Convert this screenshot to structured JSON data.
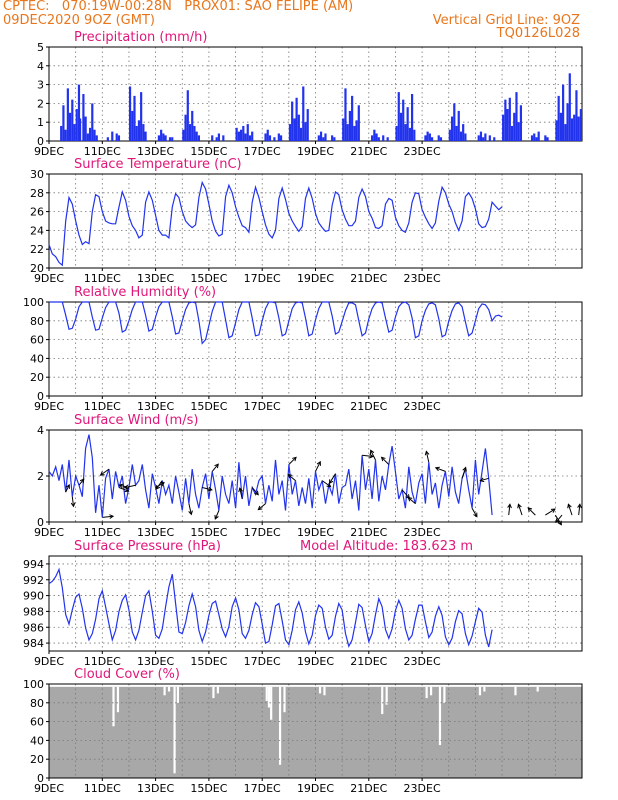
{
  "header": {
    "line1": "CPTEC:   070:19W-00:28N   PROX01: SAO FELIPE (AM)",
    "line2_left": "09DEC2020 9OZ (GMT)",
    "line2_right": "Vertical Grid Line: 9OZ",
    "line3_right": "TQ0126L028"
  },
  "colors": {
    "header": "#e8761c",
    "title": "#e0177a",
    "series": "#2233ee",
    "cloud": "#a8a8a8"
  },
  "x_tick_labels": [
    "9DEC",
    "11DEC",
    "13DEC",
    "15DEC",
    "17DEC",
    "19DEC",
    "21DEC",
    "23DEC"
  ],
  "chart_data": [
    {
      "id": "precip",
      "type": "bar",
      "title": "Precipitation (mm/h)",
      "ylim": [
        0,
        5
      ],
      "yticks": [
        0,
        1,
        2,
        3,
        4,
        5
      ],
      "color": "#2233ee",
      "x_hours": [
        10,
        12,
        14,
        16,
        18,
        20,
        22,
        24,
        26,
        27,
        30,
        32,
        34,
        36,
        38,
        40,
        42,
        52,
        56,
        60,
        62,
        72,
        74,
        76,
        78,
        80,
        82,
        84,
        86,
        98,
        100,
        102,
        104,
        108,
        110,
        120,
        122,
        124,
        126,
        128,
        130,
        132,
        134,
        146,
        150,
        152,
        156,
        168,
        170,
        172,
        174,
        176,
        178,
        180,
        182,
        194,
        196,
        198,
        202,
        206,
        208,
        216,
        218,
        220,
        222,
        224,
        226,
        228,
        230,
        232,
        242,
        244,
        246,
        248,
        254,
        256,
        264,
        266,
        268,
        270,
        272,
        274,
        276,
        278,
        290,
        292,
        294,
        296,
        300,
        304,
        312,
        314,
        316,
        318,
        320,
        322,
        324,
        326,
        328,
        338,
        340,
        342,
        344,
        350,
        352,
        360,
        362,
        364,
        366,
        368,
        370,
        372,
        374,
        386,
        388,
        390,
        392,
        396,
        400,
        408,
        410,
        412,
        414,
        416,
        418,
        420,
        422,
        424,
        434,
        436,
        438,
        440,
        446,
        448,
        456,
        458,
        460,
        462,
        464,
        466,
        468,
        470,
        472,
        474,
        476,
        478
      ],
      "values": [
        0.8,
        1.9,
        0.6,
        2.8,
        1.5,
        2.2,
        0.9,
        1.7,
        3.0,
        1.2,
        2.5,
        1.3,
        0.4,
        0.7,
        2.0,
        0.6,
        0.3,
        0.2,
        0.5,
        0.4,
        0.3,
        2.9,
        1.6,
        2.4,
        0.8,
        1.1,
        2.6,
        0.9,
        0.5,
        0.3,
        0.6,
        0.4,
        0.3,
        0.2,
        0.2,
        0.6,
        1.4,
        2.7,
        0.9,
        1.6,
        0.8,
        0.5,
        0.3,
        0.3,
        0.2,
        0.4,
        0.3,
        0.7,
        0.5,
        0.6,
        0.8,
        0.4,
        0.9,
        0.3,
        0.5,
        0.4,
        0.6,
        0.3,
        0.2,
        0.4,
        0.3,
        0.9,
        2.1,
        1.2,
        2.3,
        1.4,
        0.7,
        2.9,
        1.0,
        1.7,
        0.3,
        0.5,
        0.2,
        0.4,
        0.3,
        0.2,
        1.2,
        2.8,
        0.9,
        1.6,
        2.4,
        0.8,
        1.1,
        1.9,
        0.3,
        0.6,
        0.4,
        0.2,
        0.3,
        0.2,
        0.8,
        2.6,
        1.5,
        2.2,
        0.9,
        1.8,
        0.7,
        2.5,
        0.6,
        0.3,
        0.5,
        0.4,
        0.2,
        0.3,
        0.2,
        0.6,
        1.3,
        2.0,
        0.8,
        1.6,
        0.5,
        0.9,
        0.4,
        0.3,
        0.5,
        0.2,
        0.4,
        0.3,
        0.2,
        1.4,
        2.2,
        1.7,
        2.3,
        0.8,
        1.5,
        2.6,
        1.0,
        1.9,
        0.3,
        0.4,
        0.2,
        0.5,
        0.3,
        0.2,
        1.1,
        2.4,
        1.5,
        3.0,
        0.9,
        2.0,
        3.6,
        1.2,
        1.4,
        2.7,
        1.3,
        1.7
      ]
    },
    {
      "id": "temp",
      "type": "line",
      "title": "Surface Temperature (nC)",
      "ylim": [
        20,
        30
      ],
      "yticks": [
        20,
        22,
        24,
        26,
        28,
        30
      ],
      "color": "#2233ee",
      "x_start_hour": 0,
      "x_step_hours": 3,
      "values": [
        22.5,
        21.5,
        21.2,
        20.6,
        20.3,
        25.0,
        27.5,
        26.8,
        25.0,
        23.5,
        22.5,
        22.8,
        22.6,
        26.0,
        27.8,
        27.6,
        26.0,
        25.0,
        24.8,
        24.7,
        24.7,
        26.5,
        28.1,
        27.2,
        25.5,
        24.5,
        24.0,
        23.2,
        23.5,
        27.0,
        28.1,
        27.2,
        25.6,
        24.0,
        23.5,
        23.5,
        23.2,
        26.5,
        27.9,
        27.5,
        26.0,
        25.0,
        24.6,
        24.3,
        24.6,
        27.5,
        29.1,
        28.4,
        26.8,
        25.0,
        23.9,
        23.4,
        23.6,
        27.6,
        28.8,
        28.0,
        26.5,
        25.4,
        24.5,
        24.3,
        23.8,
        27.0,
        28.6,
        27.5,
        26.0,
        24.6,
        23.6,
        23.2,
        24.0,
        27.4,
        28.5,
        27.3,
        25.8,
        25.0,
        24.4,
        23.9,
        24.4,
        27.4,
        28.5,
        27.4,
        25.8,
        24.8,
        24.3,
        23.9,
        24.0,
        26.7,
        28.1,
        27.8,
        26.2,
        25.2,
        24.5,
        24.5,
        25.0,
        27.5,
        28.4,
        27.6,
        26.0,
        25.3,
        24.3,
        24.2,
        24.5,
        26.8,
        27.4,
        27.2,
        25.4,
        24.5,
        24.0,
        23.8,
        24.8,
        27.0,
        28.0,
        27.9,
        26.2,
        25.4,
        24.7,
        24.2,
        24.8,
        27.1,
        28.6,
        28.0,
        26.8,
        26.0,
        24.8,
        24.0,
        25.0,
        27.6,
        28.0,
        27.4,
        26.3,
        24.7,
        24.3,
        24.4,
        25.2,
        27.0,
        26.6,
        26.2,
        26.5
      ]
    },
    {
      "id": "rh",
      "type": "line",
      "title": "Relative Humidity (%)",
      "ylim": [
        0,
        100
      ],
      "yticks": [
        0,
        20,
        40,
        60,
        80,
        100
      ],
      "color": "#2233ee",
      "x_start_hour": 0,
      "x_step_hours": 3,
      "values": [
        100,
        100,
        100,
        100,
        100,
        86,
        71,
        72,
        82,
        95,
        100,
        100,
        100,
        84,
        70,
        71,
        83,
        94,
        100,
        100,
        100,
        88,
        68,
        70,
        80,
        92,
        100,
        100,
        100,
        86,
        69,
        71,
        84,
        95,
        100,
        100,
        100,
        84,
        66,
        67,
        80,
        92,
        99,
        100,
        99,
        80,
        56,
        60,
        75,
        90,
        100,
        100,
        100,
        81,
        62,
        64,
        78,
        92,
        100,
        100,
        100,
        83,
        64,
        65,
        80,
        93,
        100,
        100,
        99,
        83,
        64,
        66,
        80,
        93,
        99,
        100,
        99,
        83,
        64,
        66,
        81,
        93,
        100,
        100,
        100,
        85,
        66,
        68,
        79,
        91,
        99,
        99,
        97,
        80,
        64,
        67,
        82,
        93,
        99,
        100,
        99,
        83,
        68,
        70,
        84,
        95,
        99,
        100,
        97,
        83,
        62,
        64,
        80,
        91,
        98,
        99,
        97,
        82,
        63,
        65,
        80,
        91,
        98,
        99,
        95,
        79,
        64,
        67,
        80,
        93,
        98,
        97,
        92,
        80,
        85,
        86,
        84
      ]
    },
    {
      "id": "wind",
      "type": "line",
      "title": "Surface Wind (m/s)",
      "ylim": [
        0,
        4
      ],
      "yticks": [
        0,
        2,
        4
      ],
      "color": "#2233ee",
      "x_start_hour": 0,
      "x_step_hours": 3,
      "values": [
        2.2,
        2.0,
        2.4,
        1.8,
        2.5,
        1.3,
        2.7,
        1.1,
        2.0,
        1.6,
        1.1,
        3.2,
        3.8,
        2.8,
        0.4,
        1.6,
        0.2,
        1.9,
        2.3,
        1.0,
        2.2,
        1.5,
        2.0,
        0.8,
        1.5,
        2.5,
        1.6,
        1.8,
        2.5,
        1.4,
        0.6,
        2.1,
        1.5,
        0.8,
        1.8,
        1.2,
        1.6,
        0.8,
        2.0,
        1.3,
        0.5,
        1.9,
        0.8,
        2.3,
        1.2,
        0.6,
        1.5,
        2.1,
        1.0,
        2.2,
        1.4,
        0.5,
        2.0,
        1.2,
        0.8,
        1.8,
        0.6,
        2.6,
        1.0,
        2.0,
        0.7,
        1.5,
        1.2,
        1.8,
        2.0,
        0.8,
        1.6,
        0.9,
        2.7,
        1.2,
        1.8,
        0.5,
        2.5,
        1.2,
        1.8,
        0.7,
        1.5,
        0.8,
        1.9,
        0.6,
        2.2,
        1.4,
        1.8,
        0.8,
        1.6,
        1.2,
        2.1,
        0.8,
        1.5,
        1.6,
        2.3,
        1.0,
        1.8,
        0.5,
        2.9,
        1.4,
        2.3,
        1.0,
        2.7,
        0.9,
        2.0,
        1.4,
        2.5,
        3.3,
        2.2,
        1.0,
        1.4,
        0.6,
        2.4,
        1.3,
        0.8,
        1.7,
        2.1,
        0.8,
        2.6,
        1.2,
        1.7,
        0.6,
        1.6,
        2.2,
        1.1,
        2.4,
        1.3,
        0.8,
        1.9,
        2.3,
        1.4,
        0.6,
        2.7,
        1.2,
        2.2,
        3.2,
        1.9,
        0.3
      ],
      "arrows": [
        {
          "hour": 15,
          "u": 0.3,
          "v": 0.6
        },
        {
          "hour": 21,
          "u": 0.1,
          "v": -0.8
        },
        {
          "hour": 27,
          "u": 0.4,
          "v": 0.5
        },
        {
          "hour": 48,
          "u": 0.9,
          "v": 0.1
        },
        {
          "hour": 54,
          "u": -0.7,
          "v": -0.5
        },
        {
          "hour": 63,
          "u": 0.8,
          "v": -0.3
        },
        {
          "hour": 72,
          "u": -0.8,
          "v": 0.2
        },
        {
          "hour": 78,
          "u": -0.9,
          "v": -0.2
        },
        {
          "hour": 96,
          "u": 0.7,
          "v": 0.4
        },
        {
          "hour": 102,
          "u": -0.5,
          "v": -0.7
        },
        {
          "hour": 126,
          "u": 0.2,
          "v": -0.9
        },
        {
          "hour": 138,
          "u": 0.8,
          "v": -0.2
        },
        {
          "hour": 147,
          "u": 0.5,
          "v": 0.6
        },
        {
          "hour": 153,
          "u": -0.3,
          "v": -0.7
        },
        {
          "hour": 174,
          "u": -0.2,
          "v": 0.9
        },
        {
          "hour": 183,
          "u": 0.5,
          "v": -0.6
        },
        {
          "hour": 195,
          "u": -0.6,
          "v": -0.5
        },
        {
          "hour": 216,
          "u": 0.6,
          "v": 0.6
        },
        {
          "hour": 222,
          "u": -0.6,
          "v": 0.5
        },
        {
          "hour": 240,
          "u": 0.4,
          "v": 0.8
        },
        {
          "hour": 246,
          "u": 0.7,
          "v": -0.5
        },
        {
          "hour": 258,
          "u": -0.5,
          "v": -0.8
        },
        {
          "hour": 282,
          "u": 0.9,
          "v": -0.1
        },
        {
          "hour": 294,
          "u": -0.4,
          "v": 0.8
        },
        {
          "hour": 306,
          "u": -0.6,
          "v": 0.6
        },
        {
          "hour": 318,
          "u": 0.6,
          "v": -0.7
        },
        {
          "hour": 330,
          "u": -0.6,
          "v": 0.5
        },
        {
          "hour": 342,
          "u": -0.2,
          "v": 0.9
        },
        {
          "hour": 357,
          "u": -0.8,
          "v": 0.3
        },
        {
          "hour": 372,
          "u": 0.3,
          "v": 0.9
        },
        {
          "hour": 381,
          "u": 0.4,
          "v": -0.7
        },
        {
          "hour": 396,
          "u": -0.7,
          "v": -0.2
        },
        {
          "hour": 414,
          "u": 0.1,
          "v": 0.9
        },
        {
          "hour": 426,
          "u": -0.3,
          "v": 0.9
        },
        {
          "hour": 438,
          "u": -0.6,
          "v": 0.6
        },
        {
          "hour": 447,
          "u": 0.8,
          "v": 0.5
        },
        {
          "hour": 456,
          "u": 0.5,
          "v": -0.8
        },
        {
          "hour": 462,
          "u": -0.5,
          "v": -0.6
        },
        {
          "hour": 471,
          "u": -0.3,
          "v": 0.9
        },
        {
          "hour": 477,
          "u": 0.1,
          "v": 0.9
        }
      ]
    },
    {
      "id": "pres",
      "type": "line",
      "title": "Surface Pressure (hPa)",
      "subtitle": "Model Altitude: 183.623  m",
      "ylim": [
        983,
        995
      ],
      "yticks": [
        984,
        986,
        988,
        990,
        992,
        994
      ],
      "color": "#2233ee",
      "x_start_hour": 0,
      "x_step_hours": 3,
      "values": [
        991.5,
        991.8,
        992.4,
        993.3,
        991.0,
        987.6,
        986.4,
        988.2,
        989.8,
        990.2,
        988.4,
        985.9,
        984.4,
        985.2,
        987.0,
        989.6,
        990.6,
        988.6,
        986.4,
        984.4,
        985.6,
        988.0,
        989.4,
        990.1,
        988.2,
        985.4,
        984.4,
        985.6,
        987.9,
        990.0,
        990.6,
        988.0,
        985.0,
        984.6,
        985.8,
        988.6,
        991.1,
        992.7,
        989.0,
        985.4,
        985.2,
        986.6,
        988.7,
        990.2,
        988.6,
        985.6,
        984.2,
        985.4,
        987.5,
        989.0,
        989.3,
        987.6,
        985.8,
        984.8,
        986.1,
        988.6,
        989.7,
        988.2,
        985.2,
        984.6,
        985.6,
        987.6,
        989.1,
        988.6,
        986.4,
        984.0,
        984.2,
        986.3,
        988.7,
        989.0,
        986.8,
        984.4,
        983.8,
        985.6,
        988.2,
        989.2,
        987.8,
        985.4,
        983.9,
        985.0,
        987.5,
        988.8,
        988.4,
        986.0,
        984.5,
        985.0,
        987.4,
        989.0,
        988.2,
        985.2,
        983.6,
        984.4,
        986.6,
        988.9,
        988.5,
        986.2,
        984.2,
        985.2,
        987.6,
        989.6,
        988.6,
        985.7,
        984.6,
        985.8,
        988.1,
        989.4,
        988.4,
        985.8,
        984.4,
        985.0,
        987.0,
        988.8,
        988.8,
        986.7,
        984.7,
        985.4,
        987.4,
        988.6,
        987.5,
        984.8,
        983.8,
        984.6,
        986.7,
        988.1,
        987.7,
        985.2,
        983.8,
        984.9,
        986.7,
        988.4,
        987.9,
        985.0,
        983.5,
        985.7
      ]
    },
    {
      "id": "cloud",
      "type": "bar",
      "title": "Cloud Cover (%)",
      "ylim": [
        0,
        100
      ],
      "yticks": [
        0,
        20,
        40,
        60,
        80,
        100
      ],
      "color": "#a8a8a8",
      "baseline": 97,
      "dips": [
        {
          "hour": 58,
          "value": 55
        },
        {
          "hour": 62,
          "value": 70
        },
        {
          "hour": 104,
          "value": 88
        },
        {
          "hour": 108,
          "value": 92
        },
        {
          "hour": 113,
          "value": 5
        },
        {
          "hour": 116,
          "value": 80
        },
        {
          "hour": 148,
          "value": 85
        },
        {
          "hour": 152,
          "value": 90
        },
        {
          "hour": 196,
          "value": 82
        },
        {
          "hour": 198,
          "value": 75
        },
        {
          "hour": 200,
          "value": 62
        },
        {
          "hour": 208,
          "value": 14
        },
        {
          "hour": 212,
          "value": 70
        },
        {
          "hour": 244,
          "value": 90
        },
        {
          "hour": 248,
          "value": 88
        },
        {
          "hour": 300,
          "value": 68
        },
        {
          "hour": 304,
          "value": 78
        },
        {
          "hour": 340,
          "value": 85
        },
        {
          "hour": 344,
          "value": 88
        },
        {
          "hour": 352,
          "value": 35
        },
        {
          "hour": 356,
          "value": 80
        },
        {
          "hour": 388,
          "value": 88
        },
        {
          "hour": 392,
          "value": 92
        },
        {
          "hour": 420,
          "value": 88
        },
        {
          "hour": 440,
          "value": 92
        }
      ]
    }
  ]
}
